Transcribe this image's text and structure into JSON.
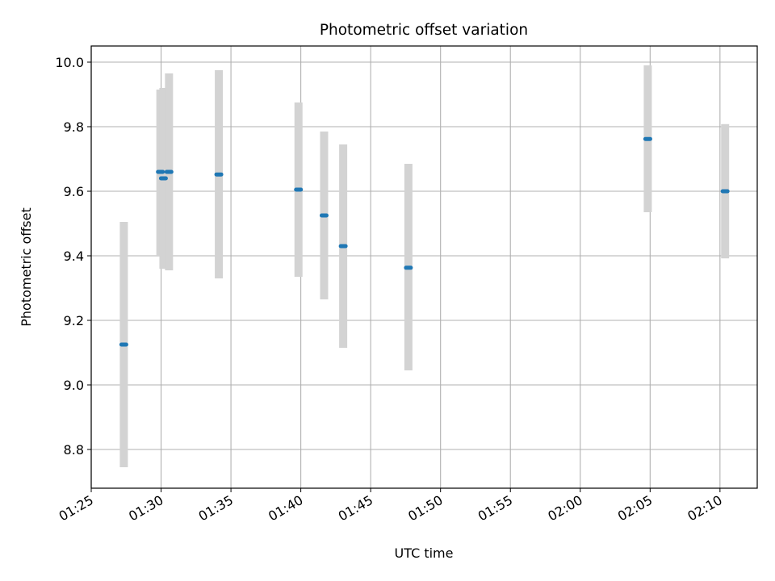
{
  "chart_data": {
    "type": "scatter",
    "title": "Photometric offset variation",
    "xlabel": "UTC time",
    "ylabel": "Photometric offset",
    "xlim": [
      "01:25:00",
      "02:12:40"
    ],
    "ylim": [
      8.68,
      10.05
    ],
    "grid": true,
    "x_ticks": [
      "01:25",
      "01:30",
      "01:35",
      "01:40",
      "01:45",
      "01:50",
      "01:55",
      "02:00",
      "02:05",
      "02:10"
    ],
    "y_ticks": [
      "8.8",
      "9.0",
      "9.2",
      "9.4",
      "9.6",
      "9.8",
      "10.0"
    ],
    "series": [
      {
        "marker_color": "#1f77b4",
        "errorbar_color": "#d3d3d3",
        "points": [
          {
            "t": "01:27:20",
            "y": 9.125,
            "lo": 8.745,
            "hi": 9.505
          },
          {
            "t": "01:29:57",
            "y": 9.66,
            "lo": 9.4,
            "hi": 9.915
          },
          {
            "t": "01:30:10",
            "y": 9.64,
            "lo": 9.36,
            "hi": 9.92
          },
          {
            "t": "01:30:34",
            "y": 9.66,
            "lo": 9.355,
            "hi": 9.965
          },
          {
            "t": "01:34:08",
            "y": 9.652,
            "lo": 9.33,
            "hi": 9.975
          },
          {
            "t": "01:39:50",
            "y": 9.605,
            "lo": 9.335,
            "hi": 9.875
          },
          {
            "t": "01:41:40",
            "y": 9.525,
            "lo": 9.265,
            "hi": 9.785
          },
          {
            "t": "01:43:02",
            "y": 9.43,
            "lo": 9.115,
            "hi": 9.745
          },
          {
            "t": "01:47:42",
            "y": 9.363,
            "lo": 9.045,
            "hi": 9.685
          },
          {
            "t": "02:04:50",
            "y": 9.762,
            "lo": 9.535,
            "hi": 9.99
          },
          {
            "t": "02:10:22",
            "y": 9.6,
            "lo": 9.392,
            "hi": 9.808
          }
        ]
      }
    ]
  }
}
